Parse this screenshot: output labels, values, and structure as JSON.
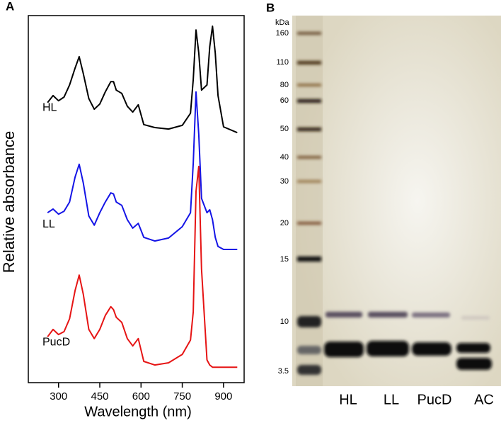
{
  "chart_data": {
    "type": "line",
    "panel": "A",
    "x_label": "Wavelength (nm)",
    "y_label": "Relative absorbance",
    "x": [
      260,
      280,
      300,
      320,
      340,
      360,
      375,
      390,
      410,
      430,
      450,
      470,
      490,
      500,
      510,
      530,
      550,
      570,
      590,
      610,
      650,
      700,
      750,
      780,
      790,
      800,
      810,
      820,
      840,
      850,
      860,
      870,
      880,
      900,
      950
    ],
    "series": [
      {
        "name": "HL",
        "color": "#000000",
        "values": [
          7.63,
          7.82,
          7.68,
          7.78,
          8.11,
          8.57,
          8.88,
          8.42,
          7.74,
          7.45,
          7.59,
          7.92,
          8.2,
          8.2,
          7.97,
          7.88,
          7.53,
          7.37,
          7.57,
          7.03,
          6.95,
          6.91,
          7.01,
          7.34,
          8.26,
          9.61,
          8.98,
          7.97,
          8.11,
          9.15,
          9.71,
          8.98,
          7.82,
          6.97,
          6.81
        ]
      },
      {
        "name": "LL",
        "color": "#1414e6",
        "values": [
          4.63,
          4.73,
          4.59,
          4.67,
          4.92,
          5.6,
          5.95,
          5.44,
          4.54,
          4.29,
          4.63,
          4.92,
          5.17,
          5.14,
          4.92,
          4.83,
          4.44,
          4.21,
          4.34,
          3.96,
          3.86,
          3.94,
          4.25,
          4.63,
          5.98,
          7.92,
          6.76,
          5.02,
          4.63,
          4.71,
          4.44,
          3.96,
          3.71,
          3.63,
          3.63
        ]
      },
      {
        "name": "PucD",
        "color": "#e61414",
        "values": [
          1.25,
          1.45,
          1.31,
          1.39,
          1.74,
          2.51,
          2.93,
          2.41,
          1.45,
          1.2,
          1.45,
          1.83,
          2.07,
          1.99,
          1.78,
          1.64,
          1.2,
          1.0,
          1.2,
          0.58,
          0.48,
          0.54,
          0.77,
          1.16,
          1.93,
          5.21,
          5.89,
          3.09,
          0.62,
          0.48,
          0.42,
          0.42,
          0.42,
          0.42,
          0.42
        ]
      }
    ],
    "xlim": [
      190,
      975
    ],
    "ylim": [
      0,
      10
    ],
    "xticks": [
      300,
      450,
      600,
      750,
      900
    ]
  },
  "gel": {
    "panel": "B",
    "unit": "kDa",
    "markers": [
      "160",
      "110",
      "80",
      "60",
      "50",
      "40",
      "30",
      "20",
      "15",
      "10",
      "3.5"
    ],
    "lanes": [
      "HL",
      "LL",
      "PucD",
      "AC"
    ]
  }
}
